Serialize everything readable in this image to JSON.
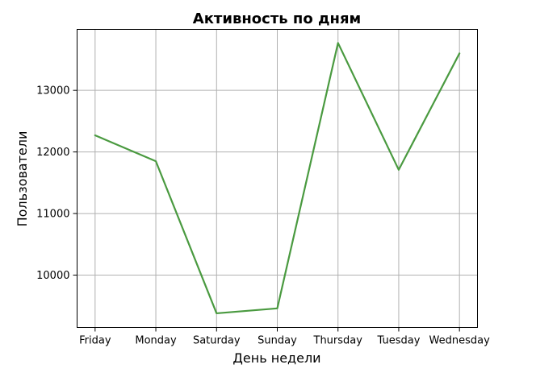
{
  "chart_data": {
    "type": "line",
    "title": "Активность по дням",
    "xlabel": "День недели",
    "ylabel": "Пользователи",
    "categories": [
      "Friday",
      "Monday",
      "Saturday",
      "Sunday",
      "Thursday",
      "Tuesday",
      "Wednesday"
    ],
    "series": [
      {
        "name": "",
        "color": "#4a9a40",
        "values": [
          12270,
          11850,
          9380,
          9460,
          13770,
          11710,
          13600
        ]
      }
    ],
    "yticks": [
      10000,
      11000,
      12000,
      13000
    ],
    "ylim": [
      9150,
      13990
    ],
    "grid": true,
    "legend": "none"
  }
}
